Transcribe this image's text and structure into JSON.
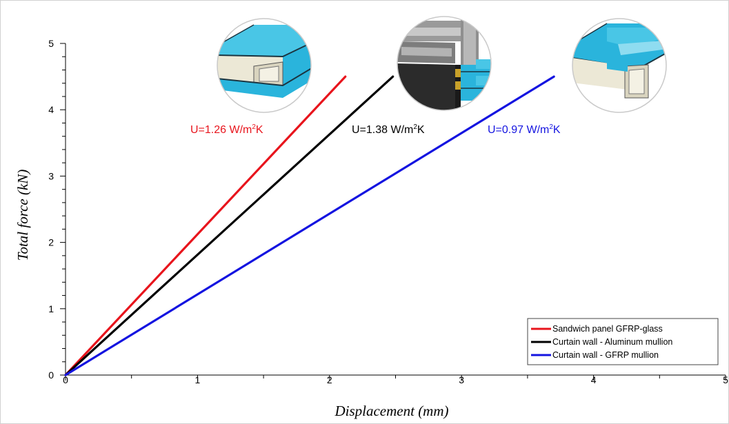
{
  "chart_data": {
    "type": "line",
    "xlabel": "Displacement (mm)",
    "ylabel": "Total force (kN)",
    "xlim": [
      0,
      5
    ],
    "ylim": [
      0,
      5
    ],
    "x_ticks": [
      "0",
      "1",
      "2",
      "3",
      "4",
      "5"
    ],
    "y_ticks": [
      "0",
      "1",
      "2",
      "3",
      "4",
      "5"
    ],
    "grid": false,
    "legend_position": "bottom-right",
    "series": [
      {
        "name": "Sandwich panel GFRP-glass",
        "color": "#e8141c",
        "points": [
          [
            0,
            0
          ],
          [
            2.12,
            4.5
          ]
        ]
      },
      {
        "name": "Curtain wall - Aluminum mullion",
        "color": "#000000",
        "points": [
          [
            0,
            0
          ],
          [
            2.48,
            4.5
          ]
        ]
      },
      {
        "name": "Curtain wall - GFRP mullion",
        "color": "#1414e0",
        "points": [
          [
            0,
            0
          ],
          [
            3.7,
            4.5
          ]
        ]
      }
    ],
    "annotations": [
      {
        "series": 0,
        "prefix": "U=1.26 W/m",
        "sup": "2",
        "suffix": "K",
        "color": "#e8141c"
      },
      {
        "series": 1,
        "prefix": "U=1.38 W/m",
        "sup": "2",
        "suffix": "K",
        "color": "#000000"
      },
      {
        "series": 2,
        "prefix": "U=0.97 W/m",
        "sup": "2",
        "suffix": "K",
        "color": "#1414e0"
      }
    ],
    "insets": [
      {
        "name": "sandwich-panel-section-inset",
        "depicts": "GFRP-glass sandwich panel cross-section"
      },
      {
        "name": "aluminum-mullion-section-inset",
        "depicts": "aluminum mullion curtain wall cross-section"
      },
      {
        "name": "gfrp-mullion-section-inset",
        "depicts": "GFRP mullion curtain wall cross-section"
      }
    ]
  }
}
